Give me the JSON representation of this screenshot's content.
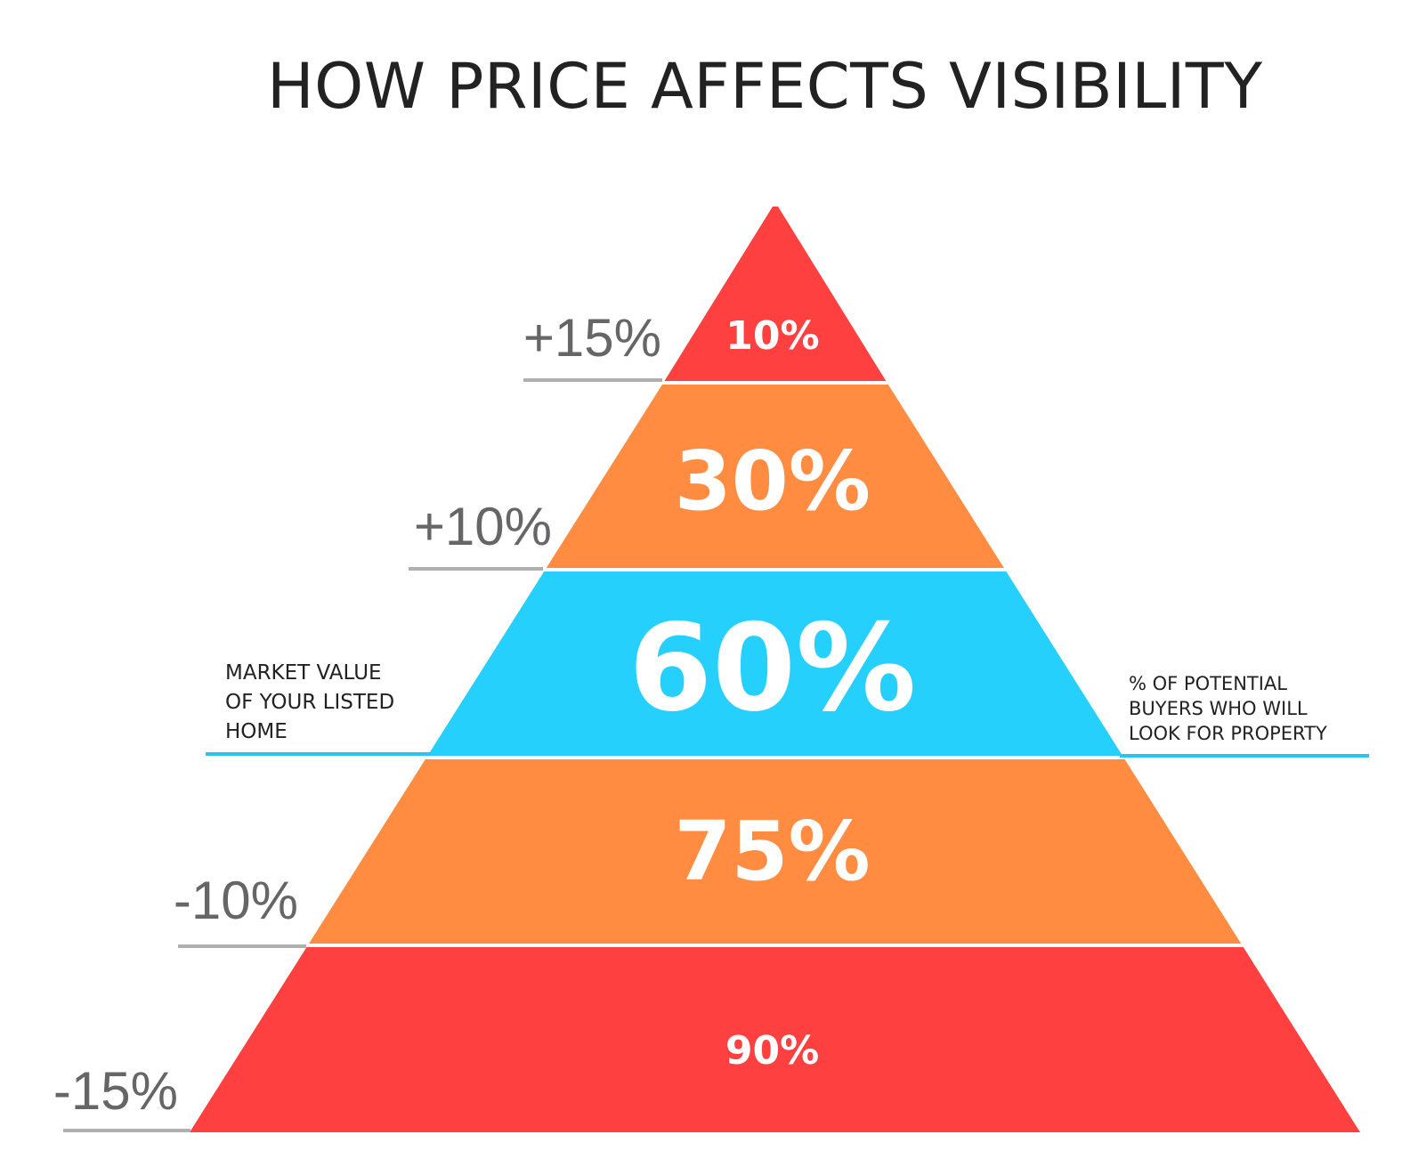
{
  "title": "HOW PRICE AFFECTS VISIBILITY",
  "colors": {
    "red": "#ff4040",
    "orange": "#ff8c40",
    "blue": "#25d0fc",
    "guide_line": "#b0b0b0",
    "market_line": "#25c6f5",
    "tier_text": "#ffffff"
  },
  "tiers": [
    {
      "value": "10%",
      "color": "#ff4040"
    },
    {
      "value": "30%",
      "color": "#ff8c40"
    },
    {
      "value": "60%",
      "color": "#25d0fc"
    },
    {
      "value": "75%",
      "color": "#ff8c40"
    },
    {
      "value": "90%",
      "color": "#ff4040"
    }
  ],
  "price_labels": [
    "+15%",
    "+10%",
    "-10%",
    "-15%"
  ],
  "market_value_note": [
    "MARKET VALUE",
    "OF YOUR LISTED",
    "HOME"
  ],
  "buyers_note": [
    "% OF POTENTIAL",
    "BUYERS WHO WILL",
    "LOOK FOR PROPERTY"
  ]
}
